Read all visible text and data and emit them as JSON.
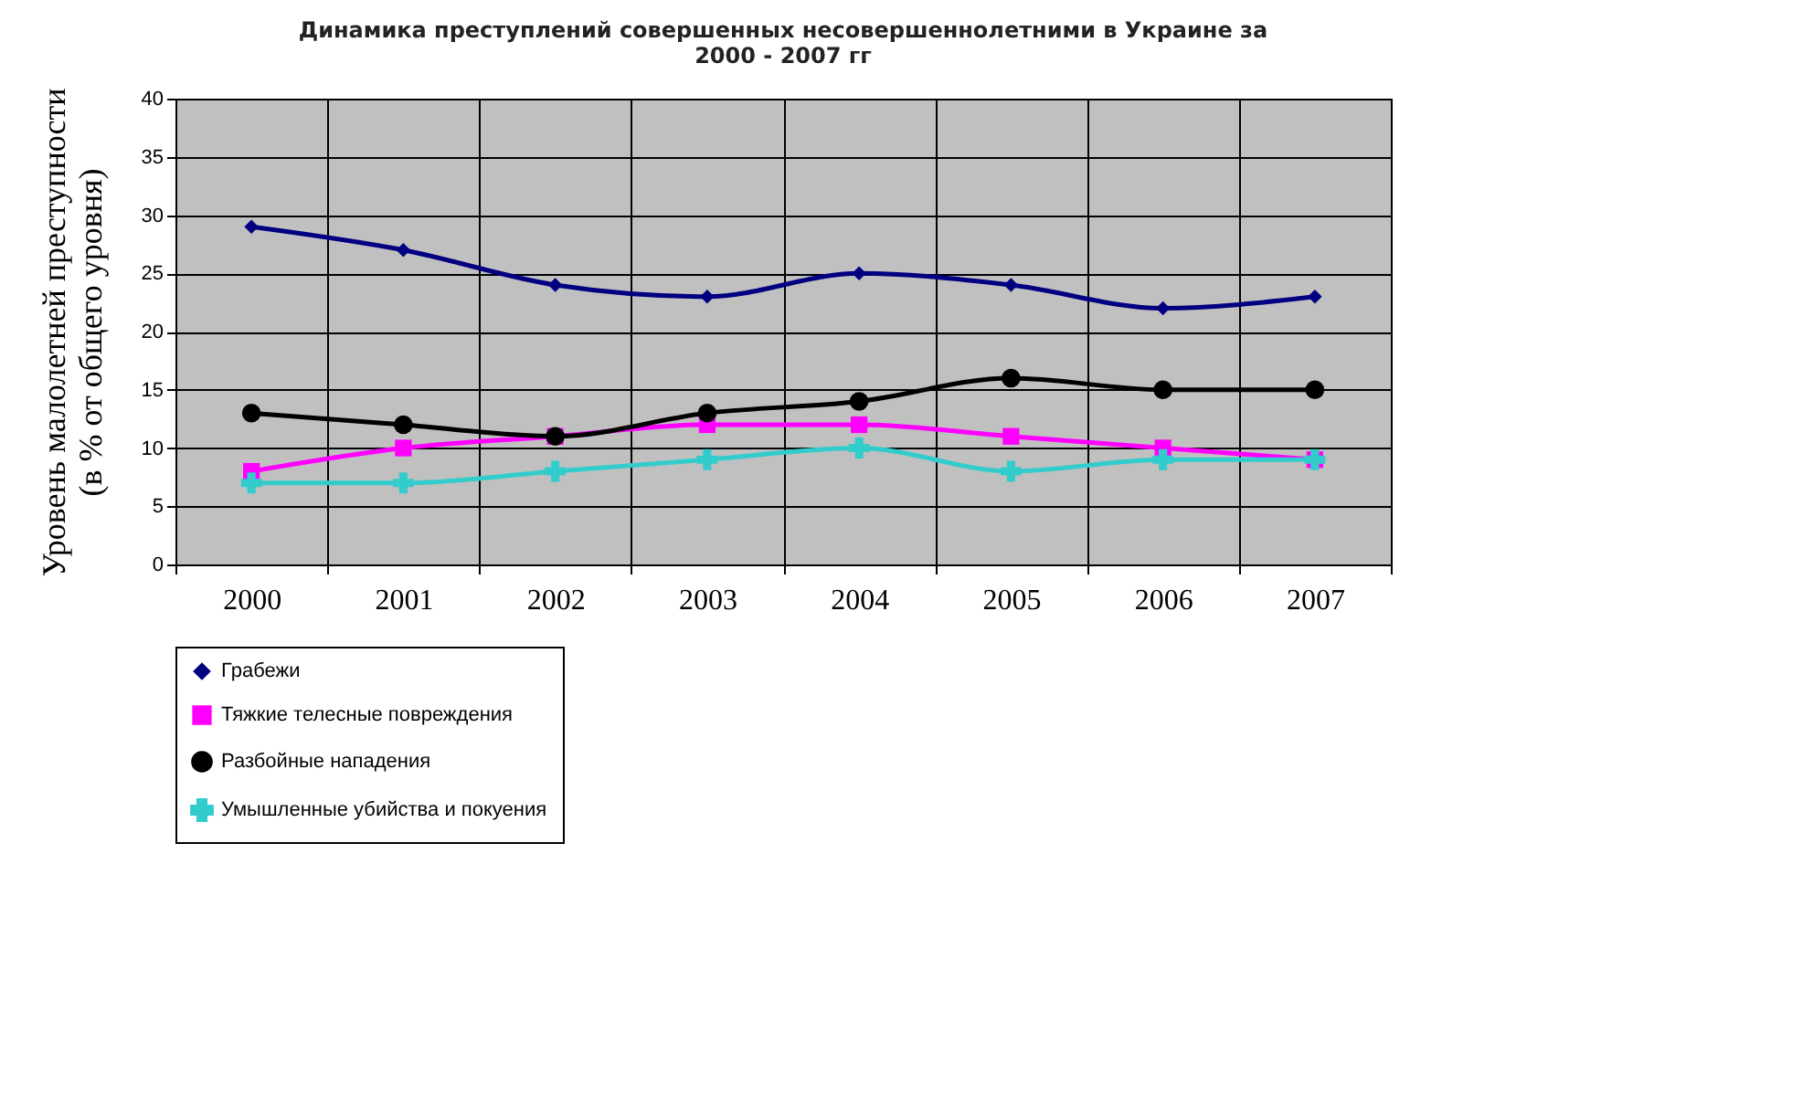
{
  "chart_data": {
    "type": "line",
    "title": "Динамика преступлений совершенных несовершеннолетними в Украине за\n2000 - 2007 гг",
    "ylabel": "Уровень малолетней преступности\n(в % от общего уровня)",
    "categories": [
      "2000",
      "2001",
      "2002",
      "2003",
      "2004",
      "2005",
      "2006",
      "2007"
    ],
    "series": [
      {
        "name": "Грабежи",
        "color": "#000080",
        "marker": "diamond",
        "values": [
          29,
          27,
          24,
          23,
          25,
          24,
          22,
          23
        ]
      },
      {
        "name": "Тяжкие телесные повреждения",
        "color": "#ff00ff",
        "marker": "square",
        "values": [
          8,
          10,
          11,
          12,
          12,
          11,
          10,
          9
        ]
      },
      {
        "name": "Разбойные нападения",
        "color": "#000000",
        "marker": "circle",
        "values": [
          13,
          12,
          11,
          13,
          14,
          16,
          15,
          15
        ]
      },
      {
        "name": "Умышленные убийства и покуения",
        "color": "#33cccc",
        "marker": "cross",
        "values": [
          7,
          7,
          8,
          9,
          10,
          8,
          9,
          9
        ]
      }
    ],
    "ylim": [
      0,
      40
    ],
    "yticks": [
      0,
      5,
      10,
      15,
      20,
      25,
      30,
      35,
      40
    ],
    "grid": true,
    "legend": "bottom"
  }
}
